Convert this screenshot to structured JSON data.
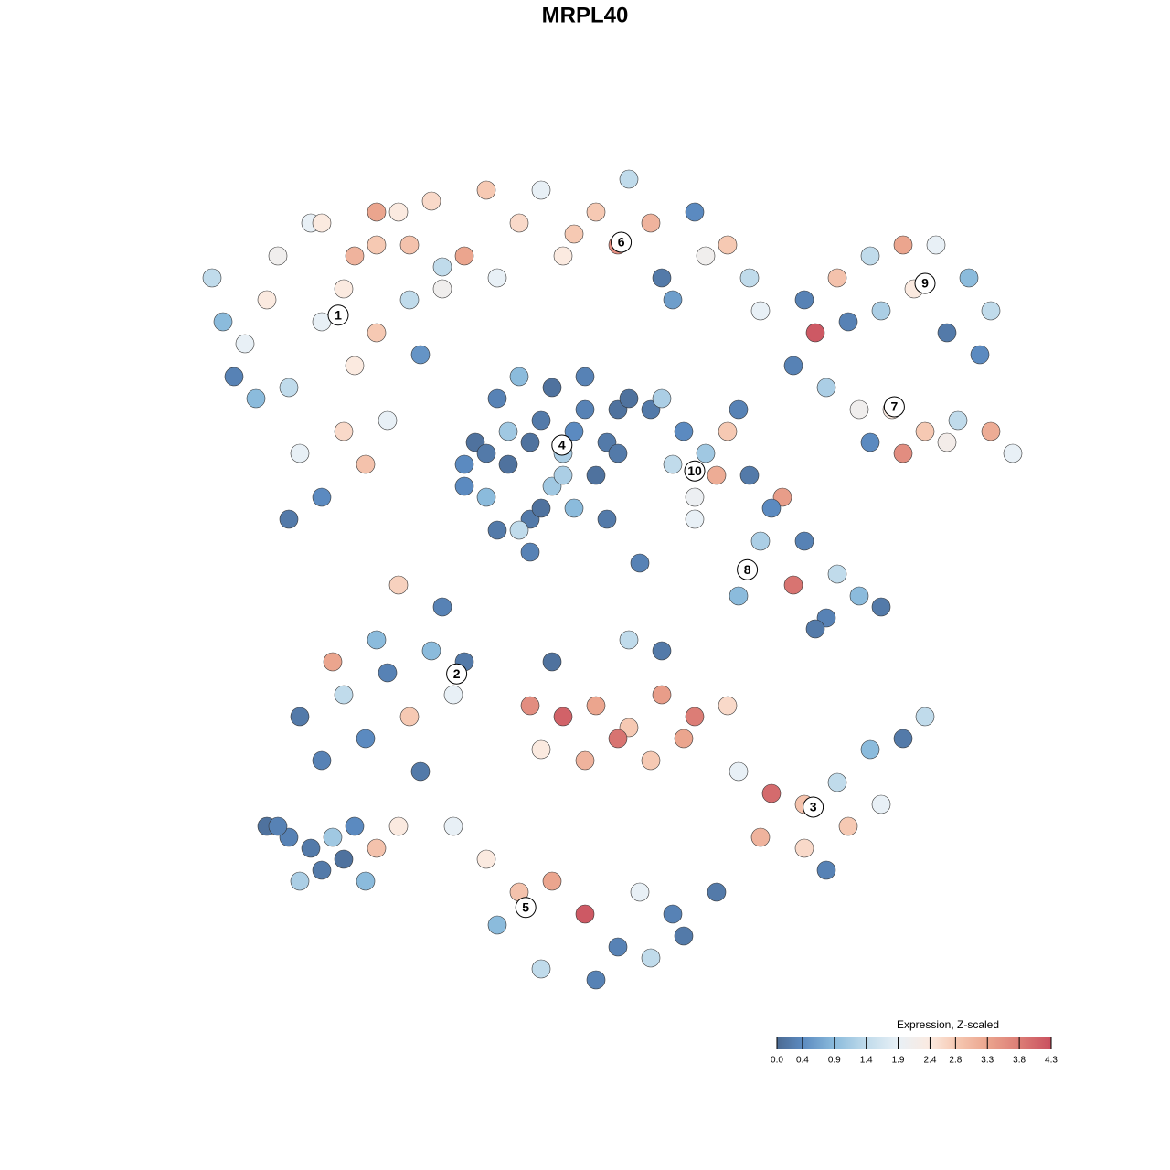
{
  "chart_data": {
    "type": "scatter",
    "title": "MRPL40",
    "xlim": [
      -40,
      40
    ],
    "ylim": [
      -40,
      40
    ],
    "x": [
      -34,
      -31,
      -28,
      -25,
      -22,
      -19,
      -16,
      -30,
      -26,
      -21,
      -24,
      -27,
      -33,
      -29,
      -24,
      -19,
      -15,
      -18,
      -22,
      -27,
      -32,
      -20,
      -13,
      -17,
      -24,
      -19,
      -14,
      -9,
      -4,
      1,
      6,
      11,
      15,
      -11,
      -2,
      8,
      -16,
      -6,
      3,
      13,
      -21,
      -8,
      4,
      10,
      -13,
      -1,
      16,
      7,
      -10,
      -8,
      -6,
      -4,
      -2,
      0,
      1,
      -9,
      -5,
      -3,
      -7,
      -1,
      -11,
      -7,
      -4,
      -1,
      2,
      -6,
      -3,
      0,
      -8,
      -5,
      -2,
      3,
      6,
      9,
      11,
      12,
      10,
      8,
      4,
      7,
      13,
      14,
      10,
      3,
      20,
      23,
      26,
      29,
      32,
      35,
      37,
      33,
      30,
      27,
      36,
      24,
      19,
      22,
      25,
      28,
      31,
      34,
      37,
      39,
      29,
      33,
      21,
      26,
      15,
      18,
      20,
      23,
      25,
      27,
      16,
      19,
      22,
      17,
      14,
      21,
      -26,
      -22,
      -18,
      -14,
      -11,
      -20,
      -16,
      -24,
      -12,
      -19,
      -23,
      -15,
      -5,
      -2,
      1,
      4,
      7,
      10,
      13,
      -4,
      0,
      3,
      6,
      9,
      14,
      17,
      20,
      23,
      26,
      29,
      31,
      24,
      20,
      16,
      27,
      22,
      -12,
      -9,
      -6,
      -3,
      0,
      3,
      6,
      9,
      -8,
      -4,
      1,
      5,
      -29,
      -27,
      -25,
      -23,
      -21,
      -19,
      -24,
      -20,
      -28,
      -22,
      -26,
      -17,
      -17,
      -13,
      -9,
      -5,
      2,
      5,
      -3,
      7,
      -11,
      4,
      8,
      12
    ],
    "y": [
      28,
      22,
      30,
      33,
      27,
      31,
      26,
      17,
      12,
      20,
      8,
      6,
      24,
      26,
      24,
      23,
      21,
      15,
      14,
      18,
      19,
      11,
      29,
      34,
      33,
      34,
      35,
      36,
      36,
      34,
      33,
      30,
      28,
      30,
      30,
      26,
      31,
      33,
      31,
      31,
      30,
      28,
      37,
      34,
      27,
      32,
      25,
      28,
      13,
      17,
      19,
      15,
      12,
      16,
      10,
      8,
      6,
      9,
      11,
      14,
      11,
      14,
      7,
      7,
      13,
      5,
      18,
      19,
      5,
      13,
      10,
      16,
      16,
      14,
      12,
      10,
      8,
      11,
      17,
      17,
      14,
      16,
      6,
      12,
      26,
      28,
      30,
      31,
      31,
      28,
      25,
      23,
      27,
      25,
      21,
      24,
      20,
      18,
      16,
      16,
      14,
      15,
      14,
      12,
      12,
      13,
      23,
      13,
      10,
      8,
      4,
      1,
      -1,
      -2,
      4,
      0,
      -3,
      7,
      -1,
      -4,
      -12,
      -10,
      -8,
      -6,
      -7,
      -14,
      -12,
      -16,
      -10,
      -5,
      -7,
      -17,
      -11,
      -12,
      -11,
      -13,
      -10,
      -12,
      -11,
      -15,
      -16,
      -14,
      -16,
      -14,
      -17,
      -19,
      -20,
      -18,
      -15,
      -14,
      -12,
      -22,
      -24,
      -23,
      -20,
      -26,
      -22,
      -25,
      -28,
      -27,
      -30,
      -33,
      -34,
      -32,
      -31,
      -35,
      -36,
      -28,
      -22,
      -23,
      -24,
      -23,
      -22,
      -24,
      -26,
      -27,
      -22,
      -25,
      -27,
      -22,
      0,
      -2,
      12,
      3,
      6,
      2,
      -7,
      -6,
      9,
      -5,
      -30,
      -28
    ],
    "values": [
      1.4,
      1.9,
      2.1,
      1.9,
      2.4,
      2.8,
      1.4,
      0.9,
      1.9,
      2.4,
      0.4,
      0.2,
      0.9,
      2.4,
      1.9,
      2.8,
      0.5,
      1.9,
      2.6,
      1.4,
      0.3,
      2.9,
      1.4,
      2.4,
      2.4,
      3.3,
      2.6,
      2.8,
      1.9,
      2.8,
      3.1,
      2.1,
      1.4,
      3.3,
      2.4,
      0.6,
      2.9,
      2.6,
      3.6,
      2.8,
      3.1,
      1.9,
      1.4,
      0.4,
      2.1,
      2.8,
      1.9,
      0.2,
      0.1,
      0.3,
      0.9,
      0.2,
      1.2,
      0.3,
      0.1,
      0.9,
      0.2,
      1.1,
      0.1,
      0.4,
      0.4,
      1.1,
      0.1,
      0.9,
      0.2,
      1.4,
      0.1,
      0.3,
      0.2,
      0.1,
      1.2,
      0.1,
      0.2,
      0.4,
      1.1,
      3.2,
      2.0,
      1.4,
      0.1,
      1.2,
      2.8,
      0.3,
      1.9,
      0.2,
      0.3,
      2.9,
      1.4,
      3.3,
      1.9,
      0.9,
      1.4,
      0.2,
      2.4,
      1.2,
      0.4,
      0.3,
      0.3,
      1.2,
      2.1,
      2.4,
      2.8,
      1.4,
      3.2,
      1.9,
      3.6,
      2.2,
      4.2,
      0.4,
      0.2,
      3.4,
      0.3,
      1.4,
      0.9,
      0.2,
      1.2,
      3.9,
      0.3,
      0.4,
      0.9,
      0.2,
      0.2,
      1.4,
      0.3,
      0.9,
      0.2,
      0.4,
      2.8,
      0.3,
      1.9,
      0.9,
      3.3,
      0.2,
      3.6,
      4.1,
      3.3,
      2.8,
      3.4,
      3.8,
      2.6,
      2.4,
      3.1,
      3.9,
      2.8,
      3.3,
      1.9,
      4.0,
      2.9,
      1.4,
      0.9,
      0.2,
      1.4,
      2.8,
      2.6,
      3.1,
      1.9,
      0.3,
      1.9,
      2.4,
      2.9,
      3.3,
      4.2,
      0.3,
      1.4,
      0.2,
      0.9,
      1.4,
      0.3,
      1.9,
      0.1,
      0.3,
      0.2,
      1.1,
      0.4,
      2.9,
      0.2,
      0.9,
      0.3,
      0.1,
      1.2,
      2.4,
      2.7,
      0.3,
      0.2,
      0.3,
      0.2,
      0.3,
      0.1,
      0.2,
      0.4,
      1.4,
      0.3,
      0.2
    ],
    "clusters": [
      {
        "label": "1",
        "x": -22.5,
        "y": 24.6
      },
      {
        "label": "2",
        "x": -11.7,
        "y": -8.1
      },
      {
        "label": "3",
        "x": 20.8,
        "y": -20.25
      },
      {
        "label": "4",
        "x": -2.1,
        "y": 12.75
      },
      {
        "label": "5",
        "x": -5.4,
        "y": -29.4
      },
      {
        "label": "6",
        "x": 3.3,
        "y": 31.25
      },
      {
        "label": "7",
        "x": 28.2,
        "y": 16.25
      },
      {
        "label": "8",
        "x": 14.8,
        "y": 1.4
      },
      {
        "label": "9",
        "x": 31,
        "y": 27.5
      },
      {
        "label": "10",
        "x": 10,
        "y": 10.4
      }
    ],
    "colorbar": {
      "title": "Expression, Z-scaled",
      "lim": [
        0,
        4.3
      ],
      "ticks": [
        {
          "value": 0,
          "label": "0.0"
        },
        0.4,
        0.9,
        1.4,
        1.9,
        2.4,
        2.8,
        3.3,
        3.8,
        4.3
      ],
      "colors": [
        "#4b6a92",
        "#5b8ac0",
        "#8bbbdc",
        "#c0dbeb",
        "#e8f0f6",
        "#fbeae0",
        "#f6c9b3",
        "#eba58e",
        "#dc7d76",
        "#c9505f"
      ]
    }
  }
}
